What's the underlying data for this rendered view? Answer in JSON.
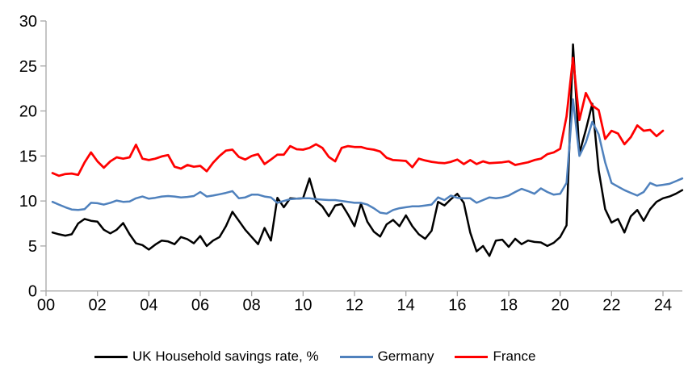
{
  "chart_data": {
    "type": "line",
    "title": "",
    "frequency": "quarterly",
    "x_start": "2000 Q1",
    "x_tick_labels": [
      "00",
      "02",
      "04",
      "06",
      "08",
      "10",
      "12",
      "14",
      "16",
      "18",
      "20",
      "22",
      "24"
    ],
    "x_tick_years": [
      0,
      2,
      4,
      6,
      8,
      10,
      12,
      14,
      16,
      18,
      20,
      22,
      24
    ],
    "y_tick_labels": [
      "0",
      "5",
      "10",
      "15",
      "20",
      "25",
      "30"
    ],
    "y_ticks": [
      0,
      5,
      10,
      15,
      20,
      25,
      30
    ],
    "ylim": [
      0,
      30
    ],
    "xlim_years": [
      0,
      24.75
    ],
    "grid": false,
    "legend_position": "bottom",
    "axis_color": "#a6a6a6",
    "text_color": "#000000",
    "series": [
      {
        "name": "UK Household savings rate, %",
        "color": "#000000",
        "line_width": 2.5,
        "values": [
          6.5,
          6.3,
          6.15,
          6.3,
          7.5,
          8.0,
          7.8,
          7.7,
          6.8,
          6.4,
          6.8,
          7.55,
          6.3,
          5.3,
          5.1,
          4.6,
          5.15,
          5.6,
          5.5,
          5.2,
          6.0,
          5.75,
          5.3,
          6.1,
          5.0,
          5.6,
          6.0,
          7.2,
          8.8,
          7.8,
          6.8,
          6.0,
          5.2,
          7.0,
          5.6,
          10.35,
          9.3,
          10.3,
          10.25,
          10.3,
          12.5,
          10.0,
          9.4,
          8.3,
          9.5,
          9.65,
          8.5,
          7.2,
          9.7,
          7.7,
          6.6,
          6.05,
          7.4,
          7.9,
          7.2,
          8.4,
          7.2,
          6.3,
          5.8,
          6.7,
          9.9,
          9.5,
          10.2,
          10.8,
          9.8,
          6.5,
          4.4,
          5.0,
          3.9,
          5.6,
          5.7,
          4.9,
          5.8,
          5.2,
          5.6,
          5.45,
          5.4,
          5.0,
          5.35,
          6.0,
          7.3,
          27.4,
          15.3,
          17.9,
          20.8,
          13.4,
          9.1,
          7.6,
          8.0,
          6.5,
          8.3,
          9.0,
          7.8,
          9.1,
          9.9,
          10.3,
          10.5,
          10.8,
          11.2
        ]
      },
      {
        "name": "Germany",
        "color": "#4f81bd",
        "line_width": 2.5,
        "values": [
          9.9,
          9.6,
          9.3,
          9.05,
          9.0,
          9.1,
          9.8,
          9.75,
          9.6,
          9.8,
          10.05,
          9.9,
          9.95,
          10.3,
          10.5,
          10.25,
          10.35,
          10.5,
          10.55,
          10.5,
          10.4,
          10.45,
          10.55,
          11.0,
          10.5,
          10.6,
          10.75,
          10.9,
          11.1,
          10.3,
          10.4,
          10.7,
          10.7,
          10.5,
          10.4,
          9.8,
          10.0,
          10.2,
          10.25,
          10.3,
          10.3,
          10.2,
          10.15,
          10.1,
          10.1,
          10.0,
          9.9,
          9.8,
          9.8,
          9.6,
          9.2,
          8.7,
          8.6,
          9.0,
          9.2,
          9.3,
          9.4,
          9.4,
          9.5,
          9.6,
          10.4,
          10.1,
          10.6,
          10.35,
          10.3,
          10.3,
          9.8,
          10.1,
          10.4,
          10.3,
          10.4,
          10.6,
          11.0,
          11.35,
          11.1,
          10.8,
          11.4,
          11.0,
          10.7,
          10.8,
          12.0,
          21.3,
          15.0,
          16.5,
          18.8,
          17.4,
          14.3,
          12.0,
          11.6,
          11.2,
          10.9,
          10.6,
          11.0,
          12.0,
          11.7,
          11.8,
          11.9,
          12.2,
          12.5
        ]
      },
      {
        "name": "France",
        "color": "#ff0000",
        "line_width": 2.75,
        "values": [
          13.1,
          12.8,
          13.0,
          13.05,
          12.9,
          14.3,
          15.4,
          14.4,
          13.7,
          14.4,
          14.85,
          14.7,
          14.85,
          16.25,
          14.7,
          14.55,
          14.7,
          14.95,
          15.1,
          13.8,
          13.6,
          14.0,
          13.8,
          13.9,
          13.3,
          14.25,
          15.0,
          15.6,
          15.7,
          14.9,
          14.6,
          15.0,
          15.2,
          14.1,
          14.6,
          15.15,
          15.15,
          16.1,
          15.75,
          15.7,
          15.9,
          16.3,
          15.9,
          14.9,
          14.4,
          15.9,
          16.1,
          16.0,
          16.0,
          15.8,
          15.7,
          15.5,
          14.8,
          14.55,
          14.5,
          14.45,
          13.75,
          14.7,
          14.5,
          14.35,
          14.25,
          14.2,
          14.35,
          14.6,
          14.1,
          14.55,
          14.1,
          14.4,
          14.2,
          14.25,
          14.3,
          14.4,
          14.0,
          14.15,
          14.3,
          14.55,
          14.7,
          15.2,
          15.4,
          15.8,
          19.4,
          25.9,
          19.0,
          22.0,
          20.6,
          20.1,
          16.9,
          17.8,
          17.5,
          16.3,
          17.1,
          18.4,
          17.8,
          17.9,
          17.2,
          17.8
        ]
      }
    ]
  }
}
